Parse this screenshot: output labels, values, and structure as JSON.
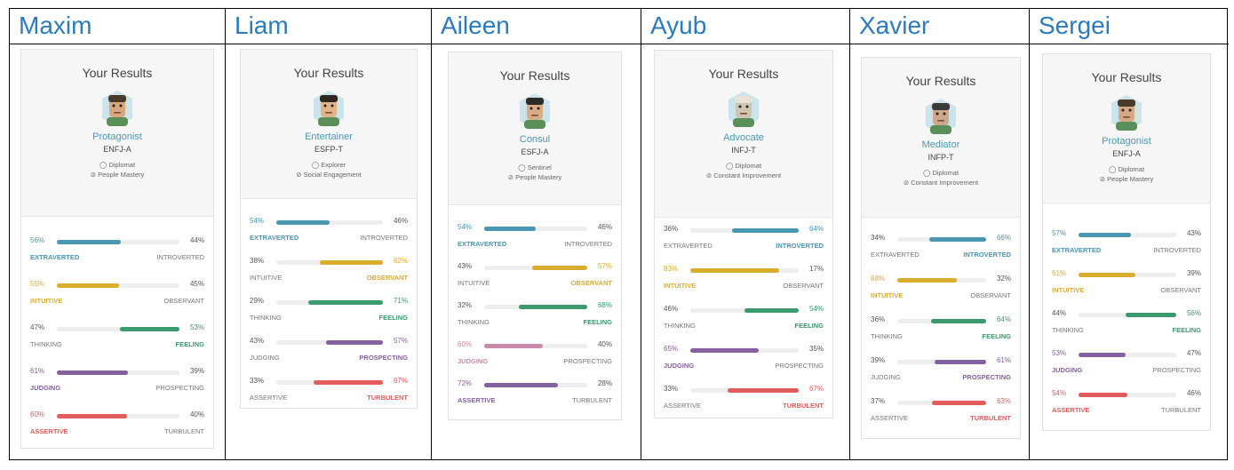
{
  "card_title": "Your Results",
  "colors": {
    "energy": "#4a97b1",
    "mind": "#d9ae2f",
    "nature": "#3b9a6e",
    "tactics": "#86619f",
    "identity": "#e25c5c",
    "name": "#2b7bbd",
    "type": "#4a9ab2"
  },
  "people": [
    {
      "name": "Maxim",
      "type": "Protagonist",
      "code": "ENFJ-A",
      "role": "Diplomat",
      "strategy": "People Mastery",
      "traits": [
        {
          "left_pct": "56%",
          "right_pct": "44%",
          "left_label": "EXTRAVERTED",
          "right_label": "INTROVERTED",
          "value": 0.56,
          "dominant": "left",
          "color": "#4a97b1"
        },
        {
          "left_pct": "55%",
          "right_pct": "45%",
          "left_label": "INTUITIVE",
          "right_label": "OBSERVANT",
          "value": 0.55,
          "dominant": "left",
          "color": "#d9ae2f"
        },
        {
          "left_pct": "47%",
          "right_pct": "53%",
          "left_label": "THINKING",
          "right_label": "FEELING",
          "value": 0.53,
          "dominant": "right",
          "color": "#3b9a6e"
        },
        {
          "left_pct": "61%",
          "right_pct": "39%",
          "left_label": "JUDGING",
          "right_label": "PROSPECTING",
          "value": 0.61,
          "dominant": "left",
          "color": "#86619f"
        },
        {
          "left_pct": "60%",
          "right_pct": "40%",
          "left_label": "ASSERTIVE",
          "right_label": "TURBULENT",
          "value": 0.6,
          "dominant": "left",
          "color": "#e25c5c"
        }
      ]
    },
    {
      "name": "Liam",
      "type": "Entertainer",
      "code": "ESFP-T",
      "role": "Explorer",
      "strategy": "Social Engagement",
      "traits": [
        {
          "left_pct": "54%",
          "right_pct": "46%",
          "left_label": "EXTRAVERTED",
          "right_label": "INTROVERTED",
          "value": 0.54,
          "dominant": "left",
          "color": "#4a97b1"
        },
        {
          "left_pct": "38%",
          "right_pct": "62%",
          "left_label": "INTUITIVE",
          "right_label": "OBSERVANT",
          "value": 0.62,
          "dominant": "right",
          "color": "#d9ae2f"
        },
        {
          "left_pct": "29%",
          "right_pct": "71%",
          "left_label": "THINKING",
          "right_label": "FEELING",
          "value": 0.71,
          "dominant": "right",
          "color": "#3b9a6e"
        },
        {
          "left_pct": "43%",
          "right_pct": "57%",
          "left_label": "JUDGING",
          "right_label": "PROSPECTING",
          "value": 0.57,
          "dominant": "right",
          "color": "#86619f"
        },
        {
          "left_pct": "33%",
          "right_pct": "67%",
          "left_label": "ASSERTIVE",
          "right_label": "TURBULENT",
          "value": 0.67,
          "dominant": "right",
          "color": "#e25c5c"
        }
      ]
    },
    {
      "name": "Aileen",
      "type": "Consul",
      "code": "ESFJ-A",
      "role": "Sentinel",
      "strategy": "People Mastery",
      "traits": [
        {
          "left_pct": "54%",
          "right_pct": "46%",
          "left_label": "EXTRAVERTED",
          "right_label": "INTROVERTED",
          "value": 0.54,
          "dominant": "left",
          "color": "#4a97b1"
        },
        {
          "left_pct": "43%",
          "right_pct": "57%",
          "left_label": "INTUITIVE",
          "right_label": "OBSERVANT",
          "value": 0.57,
          "dominant": "right",
          "color": "#d9ae2f"
        },
        {
          "left_pct": "32%",
          "right_pct": "68%",
          "left_label": "THINKING",
          "right_label": "FEELING",
          "value": 0.68,
          "dominant": "right",
          "color": "#3b9a6e"
        },
        {
          "left_pct": "60%",
          "right_pct": "40%",
          "left_label": "JUDGING",
          "right_label": "PROSPECTING",
          "value": 0.6,
          "dominant": "left",
          "color": "#c98aa9"
        },
        {
          "left_pct": "72%",
          "right_pct": "28%",
          "left_label": "ASSERTIVE",
          "right_label": "TURBULENT",
          "value": 0.72,
          "dominant": "left",
          "color": "#86619f"
        }
      ]
    },
    {
      "name": "Ayub",
      "type": "Advocate",
      "code": "INFJ-T",
      "role": "Diplomat",
      "strategy": "Constant Improvement",
      "traits": [
        {
          "left_pct": "36%",
          "right_pct": "64%",
          "left_label": "EXTRAVERTED",
          "right_label": "INTROVERTED",
          "value": 0.64,
          "dominant": "right",
          "color": "#4a97b1"
        },
        {
          "left_pct": "83%",
          "right_pct": "17%",
          "left_label": "INTUITIVE",
          "right_label": "OBSERVANT",
          "value": 0.83,
          "dominant": "left",
          "color": "#d9ae2f"
        },
        {
          "left_pct": "46%",
          "right_pct": "54%",
          "left_label": "THINKING",
          "right_label": "FEELING",
          "value": 0.54,
          "dominant": "right",
          "color": "#3b9a6e"
        },
        {
          "left_pct": "65%",
          "right_pct": "35%",
          "left_label": "JUDGING",
          "right_label": "PROSPECTING",
          "value": 0.65,
          "dominant": "left",
          "color": "#86619f"
        },
        {
          "left_pct": "33%",
          "right_pct": "67%",
          "left_label": "ASSERTIVE",
          "right_label": "TURBULENT",
          "value": 0.67,
          "dominant": "right",
          "color": "#e25c5c"
        }
      ]
    },
    {
      "name": "Xavier",
      "type": "Mediator",
      "code": "INFP-T",
      "role": "Diplomat",
      "strategy": "Constant Improvement",
      "traits": [
        {
          "left_pct": "34%",
          "right_pct": "66%",
          "left_label": "EXTRAVERTED",
          "right_label": "INTROVERTED",
          "value": 0.66,
          "dominant": "right",
          "color": "#4a97b1"
        },
        {
          "left_pct": "68%",
          "right_pct": "32%",
          "left_label": "INTUITIVE",
          "right_label": "OBSERVANT",
          "value": 0.68,
          "dominant": "left",
          "color": "#d9ae2f"
        },
        {
          "left_pct": "36%",
          "right_pct": "64%",
          "left_label": "THINKING",
          "right_label": "FEELING",
          "value": 0.64,
          "dominant": "right",
          "color": "#3b9a6e"
        },
        {
          "left_pct": "39%",
          "right_pct": "61%",
          "left_label": "JUDGING",
          "right_label": "PROSPECTING",
          "value": 0.61,
          "dominant": "right",
          "color": "#86619f"
        },
        {
          "left_pct": "37%",
          "right_pct": "63%",
          "left_label": "ASSERTIVE",
          "right_label": "TURBULENT",
          "value": 0.63,
          "dominant": "right",
          "color": "#e25c5c"
        }
      ]
    },
    {
      "name": "Sergei",
      "type": "Protagonist",
      "code": "ENFJ-A",
      "role": "Diplomat",
      "strategy": "People Mastery",
      "traits": [
        {
          "left_pct": "57%",
          "right_pct": "43%",
          "left_label": "EXTRAVERTED",
          "right_label": "INTROVERTED",
          "value": 0.57,
          "dominant": "left",
          "color": "#4a97b1"
        },
        {
          "left_pct": "61%",
          "right_pct": "39%",
          "left_label": "INTUITIVE",
          "right_label": "OBSERVANT",
          "value": 0.61,
          "dominant": "left",
          "color": "#d9ae2f"
        },
        {
          "left_pct": "44%",
          "right_pct": "56%",
          "left_label": "THINKING",
          "right_label": "FEELING",
          "value": 0.56,
          "dominant": "right",
          "color": "#3b9a6e"
        },
        {
          "left_pct": "53%",
          "right_pct": "47%",
          "left_label": "JUDGING",
          "right_label": "PROSPECTING",
          "value": 0.53,
          "dominant": "left",
          "color": "#86619f"
        },
        {
          "left_pct": "54%",
          "right_pct": "46%",
          "left_label": "ASSERTIVE",
          "right_label": "TURBULENT",
          "value": 0.54,
          "dominant": "left",
          "color": "#e25c5c"
        }
      ]
    }
  ]
}
